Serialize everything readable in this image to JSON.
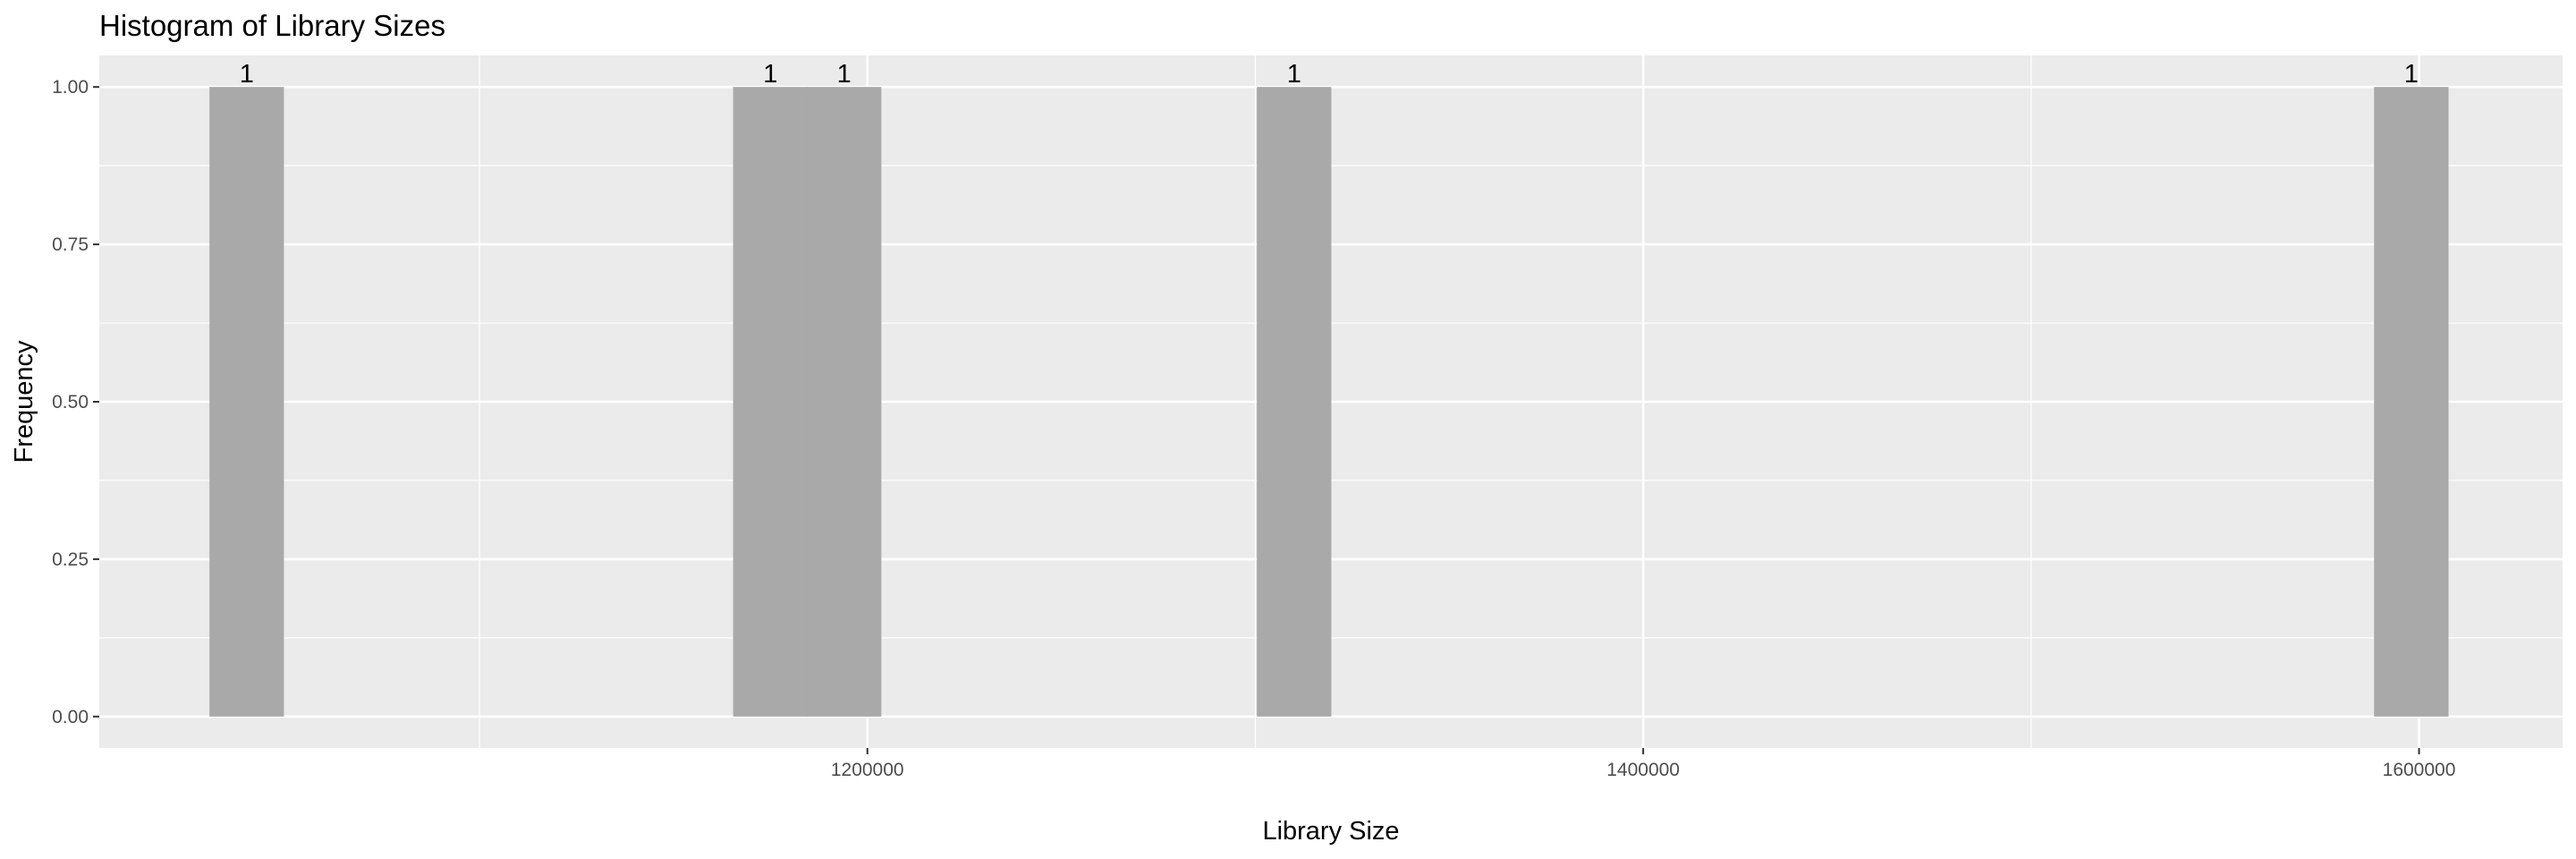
{
  "chart_data": {
    "type": "bar",
    "title": "Histogram of Library Sizes",
    "xlabel": "Library Size",
    "ylabel": "Frequency",
    "xlim": [
      1002000,
      1637000
    ],
    "ylim": [
      -0.05,
      1.05
    ],
    "x_ticks": [
      1200000,
      1400000,
      1600000
    ],
    "x_tick_labels": [
      "1200000",
      "1400000",
      "1600000"
    ],
    "y_ticks": [
      0,
      0.25,
      0.5,
      0.75,
      1
    ],
    "y_tick_labels": [
      "0.00",
      "0.25",
      "0.50",
      "0.75",
      "1.00"
    ],
    "bin_width": 19200,
    "bars": [
      {
        "center": 1040000,
        "value": 1,
        "label": "1"
      },
      {
        "center": 1175000,
        "value": 1,
        "label": "1"
      },
      {
        "center": 1194000,
        "value": 1,
        "label": "1"
      },
      {
        "center": 1310000,
        "value": 1,
        "label": "1"
      },
      {
        "center": 1598000,
        "value": 1,
        "label": "1"
      }
    ],
    "grid": true,
    "colors": {
      "panel": "#ebebeb",
      "grid_major": "#ffffff",
      "bar_fill": "#a9a9a9",
      "tick": "#333333"
    }
  }
}
